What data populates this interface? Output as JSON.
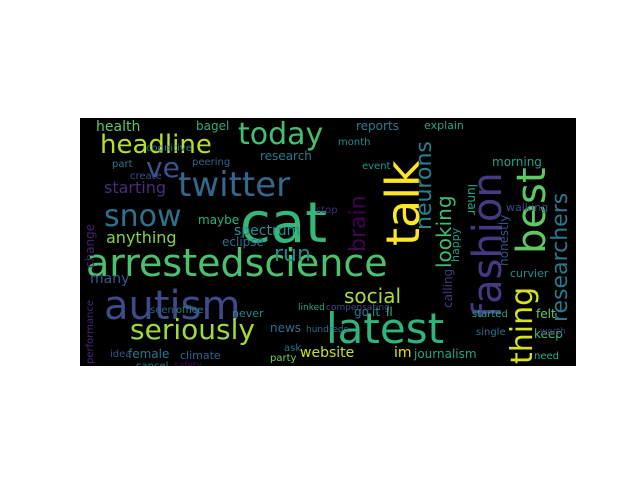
{
  "words": [
    {
      "text": "cat",
      "color": "#35b779"
    },
    {
      "text": "latest",
      "color": "#2fb47c"
    },
    {
      "text": "autism",
      "color": "#3e4a89"
    },
    {
      "text": "arrestedscience",
      "color": "#4ac16d"
    },
    {
      "text": "fashion",
      "color": "#443983"
    },
    {
      "text": "talk",
      "color": "#fde725"
    },
    {
      "text": "best",
      "color": "#5ec962"
    },
    {
      "text": "twitter",
      "color": "#31688e"
    },
    {
      "text": "seriously",
      "color": "#9fda3a"
    },
    {
      "text": "today",
      "color": "#44bf70"
    },
    {
      "text": "headline",
      "color": "#b5de2b"
    },
    {
      "text": "snow",
      "color": "#2c728e"
    },
    {
      "text": "ve",
      "color": "#3b528b"
    },
    {
      "text": "thing",
      "color": "#d8e219"
    },
    {
      "text": "researchers",
      "color": "#2a788e"
    },
    {
      "text": "neurons",
      "color": "#26828e"
    },
    {
      "text": "looking",
      "color": "#3fbc73"
    },
    {
      "text": "brain",
      "color": "#440154"
    },
    {
      "text": "social",
      "color": "#addc30"
    },
    {
      "text": "run",
      "color": "#25848e"
    },
    {
      "text": "starting",
      "color": "#472d7b"
    },
    {
      "text": "anything",
      "color": "#84d44b"
    },
    {
      "text": "spectrum",
      "color": "#21918c"
    },
    {
      "text": "research",
      "color": "#2a788e"
    },
    {
      "text": "health",
      "color": "#5ec962"
    },
    {
      "text": "website",
      "color": "#c8e020"
    },
    {
      "text": "im",
      "color": "#e5e419"
    },
    {
      "text": "journalism",
      "color": "#21a685"
    },
    {
      "text": "many",
      "color": "#38588c"
    },
    {
      "text": "change",
      "color": "#482173"
    },
    {
      "text": "news",
      "color": "#2e6e8e"
    },
    {
      "text": "felt",
      "color": "#6ccd5a"
    },
    {
      "text": "reports",
      "color": "#277f8e"
    },
    {
      "text": "explain",
      "color": "#22a884"
    },
    {
      "text": "morning",
      "color": "#1fa188"
    },
    {
      "text": "keep",
      "color": "#3dbc74"
    },
    {
      "text": "maybe",
      "color": "#2db27d"
    },
    {
      "text": "eclipse",
      "color": "#2d708e"
    },
    {
      "text": "calling",
      "color": "#453882"
    },
    {
      "text": "happy",
      "color": "#1f9e89"
    },
    {
      "text": "honestly",
      "color": "#3b528b"
    },
    {
      "text": "walking",
      "color": "#3e4989"
    },
    {
      "text": "lunar",
      "color": "#25ab82"
    },
    {
      "text": "curvier",
      "color": "#21908d"
    },
    {
      "text": "female",
      "color": "#2b758e"
    },
    {
      "text": "climate",
      "color": "#35608d"
    },
    {
      "text": "performance",
      "color": "#482677"
    },
    {
      "text": "never",
      "color": "#24868e"
    },
    {
      "text": "party",
      "color": "#7ad151"
    },
    {
      "text": "compensating",
      "color": "#3f4788"
    },
    {
      "text": "bagel",
      "color": "#27ad81"
    },
    {
      "text": "cognitive",
      "color": "#2c728e"
    },
    {
      "text": "peering",
      "color": "#32648e"
    },
    {
      "text": "event",
      "color": "#1f988b"
    },
    {
      "text": "month",
      "color": "#228c8d"
    },
    {
      "text": "stop",
      "color": "#482475"
    },
    {
      "text": "seen",
      "color": "#355f8d"
    },
    {
      "text": "office",
      "color": "#24878e"
    },
    {
      "text": "cancel",
      "color": "#2a788e"
    },
    {
      "text": "safety",
      "color": "#46085c"
    },
    {
      "text": "idea",
      "color": "#3b528b"
    },
    {
      "text": "ask",
      "color": "#2d708e"
    },
    {
      "text": "linked",
      "color": "#23a983"
    },
    {
      "text": "hundreds",
      "color": "#2f6c8e"
    },
    {
      "text": "started",
      "color": "#22a785"
    },
    {
      "text": "single",
      "color": "#2c728e"
    },
    {
      "text": "need",
      "color": "#29af7f"
    },
    {
      "text": "worth",
      "color": "#453781"
    },
    {
      "text": "create",
      "color": "#3e4c8a"
    },
    {
      "text": "part",
      "color": "#287c8e"
    },
    {
      "text": "go",
      "color": "#29798e"
    },
    {
      "text": "it",
      "color": "#20928c"
    },
    {
      "text": "ll",
      "color": "#31b57b"
    }
  ]
}
